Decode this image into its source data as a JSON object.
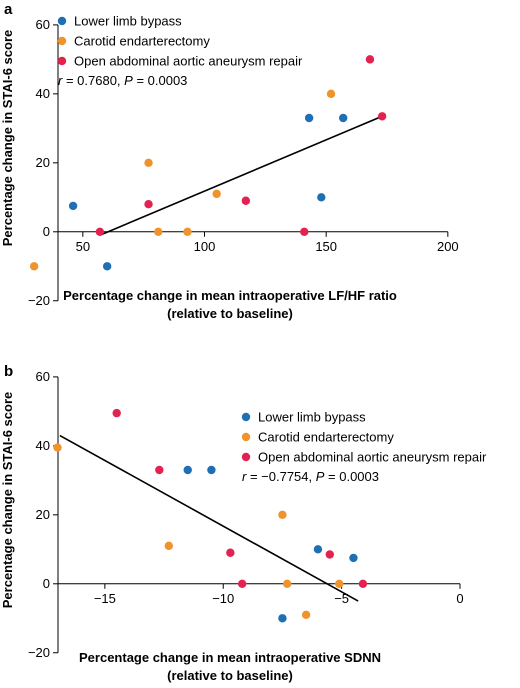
{
  "chart_data": [
    {
      "type": "scatter",
      "panel": "a",
      "ylabel": "Percentage change in STAI-6 score",
      "xlabel_lines": [
        "Percentage change in mean intraoperative LF/HF ratio",
        "(relative to baseline)"
      ],
      "xlim": [
        25,
        205
      ],
      "ylim": [
        -25,
        62
      ],
      "xticks": [
        50,
        100,
        150,
        200
      ],
      "yticks": [
        -20,
        0,
        20,
        40,
        60
      ],
      "legend_placement": "top-left",
      "stat_text": "r = 0.7680, P = 0.0003",
      "stat_r": "r",
      "stat_r_value": " = 0.7680, ",
      "stat_p": "P",
      "stat_p_value": " = 0.0003",
      "series": [
        {
          "name": "Lower limb bypass",
          "color": "#1f6fb5",
          "points": [
            [
              46,
              7.5
            ],
            [
              60,
              -10
            ],
            [
              143,
              33
            ],
            [
              148,
              10
            ],
            [
              157,
              33
            ]
          ]
        },
        {
          "name": "Carotid endarterectomy",
          "color": "#f0932b",
          "points": [
            [
              30,
              -10
            ],
            [
              77,
              20
            ],
            [
              81,
              0
            ],
            [
              93,
              0
            ],
            [
              105,
              11
            ],
            [
              152,
              40
            ]
          ]
        },
        {
          "name": "Open abdominal aortic aneurysm repair",
          "color": "#e3224f",
          "points": [
            [
              57,
              0
            ],
            [
              77,
              8
            ],
            [
              117,
              9
            ],
            [
              141,
              0
            ],
            [
              168,
              50
            ],
            [
              173,
              33.5
            ]
          ]
        }
      ],
      "fit_line": [
        [
          57,
          -1
        ],
        [
          173,
          33.5
        ]
      ]
    },
    {
      "type": "scatter",
      "panel": "b",
      "ylabel": "Percentage change in STAI-6 score",
      "xlabel_lines": [
        "Percentage change in mean intraoperative SDNN",
        "(relative to baseline)"
      ],
      "xlim": [
        -18.5,
        0
      ],
      "ylim": [
        -25,
        62
      ],
      "xticks": [
        -15,
        -10,
        -5,
        0
      ],
      "yticks": [
        -20,
        0,
        20,
        40,
        60
      ],
      "legend_placement": "top-right",
      "stat_text": "r = −0.7754, P = 0.0003",
      "stat_r": "r",
      "stat_r_value": " = −0.7754, ",
      "stat_p": "P",
      "stat_p_value": " = 0.0003",
      "series": [
        {
          "name": "Lower limb bypass",
          "color": "#1f6fb5",
          "points": [
            [
              -11.5,
              33
            ],
            [
              -10.5,
              33
            ],
            [
              -7.5,
              -10
            ],
            [
              -6,
              10
            ],
            [
              -4.5,
              7.5
            ]
          ]
        },
        {
          "name": "Carotid endarterectomy",
          "color": "#f0932b",
          "points": [
            [
              -17,
              39.5
            ],
            [
              -12.3,
              11
            ],
            [
              -7.5,
              20
            ],
            [
              -7.3,
              0
            ],
            [
              -6.5,
              -9
            ],
            [
              -5.1,
              0
            ]
          ]
        },
        {
          "name": "Open abdominal aortic aneurysm repair",
          "color": "#e3224f",
          "points": [
            [
              -14.5,
              49.5
            ],
            [
              -12.7,
              33
            ],
            [
              -9.7,
              9
            ],
            [
              -9.2,
              0
            ],
            [
              -5.5,
              8.5
            ],
            [
              -4.1,
              0
            ]
          ]
        }
      ],
      "fit_line": [
        [
          -16.9,
          43
        ],
        [
          -4.3,
          -5
        ]
      ]
    }
  ]
}
